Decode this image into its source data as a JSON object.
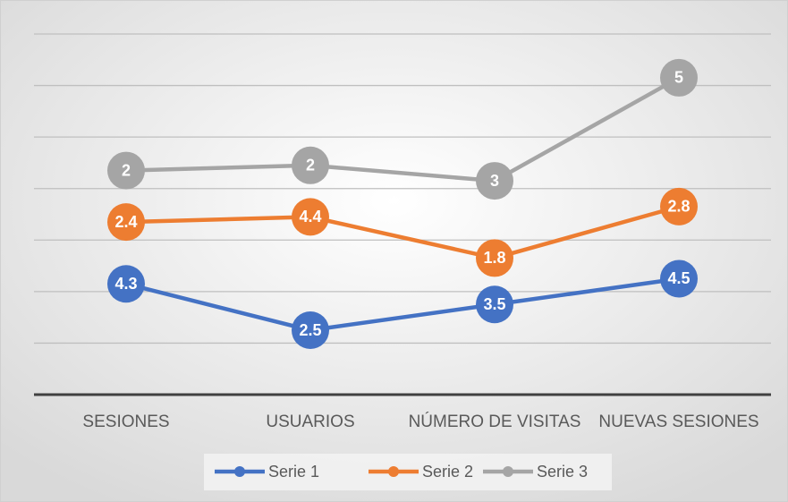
{
  "chart_data": {
    "type": "line",
    "stacked": true,
    "categories": [
      "SESIONES",
      "USUARIOS",
      "NÚMERO DE VISITAS",
      "NUEVAS SESIONES"
    ],
    "series": [
      {
        "name": "Serie 1",
        "color": "#4472c4",
        "values": [
          4.3,
          2.5,
          3.5,
          4.5
        ]
      },
      {
        "name": "Serie 2",
        "color": "#ed7d31",
        "values": [
          2.4,
          4.4,
          1.8,
          2.8
        ]
      },
      {
        "name": "Serie 3",
        "color": "#a5a5a5",
        "values": [
          2,
          2,
          3,
          5
        ]
      }
    ],
    "ylim": [
      0,
      14
    ],
    "yticks": [
      0,
      2,
      4,
      6,
      8,
      10,
      12,
      14
    ],
    "grid": true,
    "legend": "bottom"
  }
}
